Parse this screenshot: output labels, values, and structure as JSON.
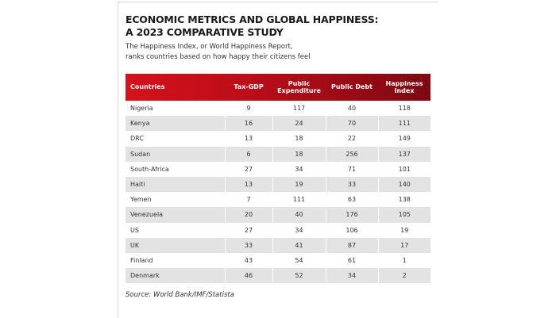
{
  "header": {
    "title_lines": [
      "ECONOMIC METRICS AND GLOBAL HAPPINESS:",
      "A 2023 COMPARATIVE STUDY"
    ],
    "subtitle_lines": [
      "The Happiness Index, or World Happiness Report,",
      "ranks countries based on how happy their citizens feel"
    ]
  },
  "table": {
    "columns": [
      "Countries",
      "Tax-GDP",
      "Public Expenditure",
      "Public Debt",
      "Happiness Index"
    ],
    "rows": [
      [
        "Nigeria",
        9,
        117,
        40,
        118
      ],
      [
        "Kenya",
        16,
        24,
        70,
        111
      ],
      [
        "DRC",
        13,
        18,
        22,
        149
      ],
      [
        "Sudan",
        6,
        18,
        256,
        137
      ],
      [
        "South-Africa",
        27,
        34,
        71,
        101
      ],
      [
        "Haiti",
        13,
        19,
        33,
        140
      ],
      [
        "Yemen",
        7,
        111,
        63,
        138
      ],
      [
        "Venezuela",
        20,
        40,
        176,
        105
      ],
      [
        "US",
        27,
        34,
        106,
        19
      ],
      [
        "UK",
        33,
        41,
        87,
        17
      ],
      [
        "Finland",
        43,
        54,
        61,
        1
      ],
      [
        "Denmark",
        46,
        52,
        34,
        2
      ]
    ]
  },
  "footer": {
    "source": "Source: World Bank/IMF/Statista"
  }
}
